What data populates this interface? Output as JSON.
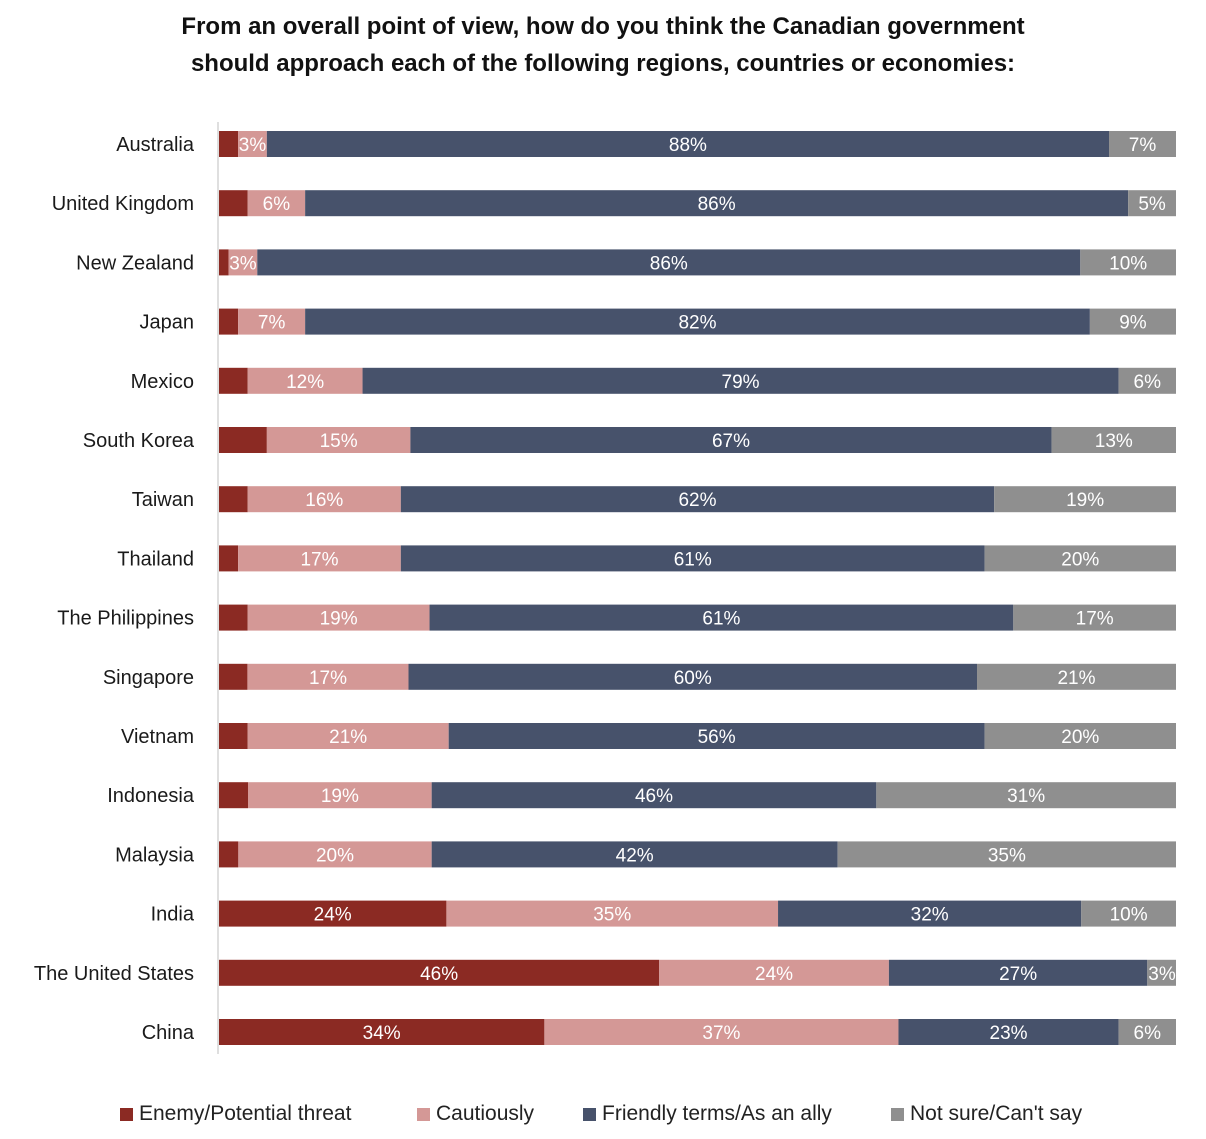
{
  "chart_data": {
    "type": "bar",
    "orientation": "horizontal",
    "stacked": true,
    "title": [
      "From an overall point of view, how do you think the Canadian government",
      "should approach each of the following regions, countries or economies:"
    ],
    "categories": [
      "Australia",
      "United Kingdom",
      "New Zealand",
      "Japan",
      "Mexico",
      "South Korea",
      "Taiwan",
      "Thailand",
      "The Philippines",
      "Singapore",
      "Vietnam",
      "Indonesia",
      "Malaysia",
      "India",
      "The United States",
      "China"
    ],
    "series": [
      {
        "name": "Enemy/Potential threat",
        "color": "#8b2a23",
        "values": [
          2,
          3,
          1,
          2,
          3,
          5,
          3,
          2,
          3,
          3,
          3,
          3,
          2,
          24,
          46,
          34
        ],
        "labels": [
          "",
          "",
          "",
          "",
          "",
          "",
          "",
          "",
          "",
          "",
          "",
          "",
          "",
          "24%",
          "46%",
          "34%"
        ]
      },
      {
        "name": "Cautiously",
        "color": "#d49896",
        "values": [
          3,
          6,
          3,
          7,
          12,
          15,
          16,
          17,
          19,
          17,
          21,
          19,
          20,
          35,
          24,
          37
        ],
        "labels": [
          "3%",
          "6%",
          "3%",
          "7%",
          "12%",
          "15%",
          "16%",
          "17%",
          "19%",
          "17%",
          "21%",
          "19%",
          "20%",
          "35%",
          "24%",
          "37%"
        ]
      },
      {
        "name": "Friendly terms/As an ally",
        "color": "#47526b",
        "values": [
          88,
          86,
          86,
          82,
          79,
          67,
          62,
          61,
          61,
          60,
          56,
          46,
          42,
          32,
          27,
          23
        ],
        "labels": [
          "88%",
          "86%",
          "86%",
          "82%",
          "79%",
          "67%",
          "62%",
          "61%",
          "61%",
          "60%",
          "56%",
          "46%",
          "42%",
          "32%",
          "27%",
          "23%"
        ]
      },
      {
        "name": "Not sure/Can't say",
        "color": "#8f8f8f",
        "values": [
          7,
          5,
          10,
          9,
          6,
          13,
          19,
          20,
          17,
          21,
          20,
          31,
          35,
          10,
          3,
          6
        ],
        "labels": [
          "7%",
          "5%",
          "10%",
          "9%",
          "6%",
          "13%",
          "19%",
          "20%",
          "17%",
          "21%",
          "20%",
          "31%",
          "35%",
          "10%",
          "3%",
          "6%"
        ]
      }
    ],
    "xlim": [
      0,
      100
    ],
    "legend_position": "bottom",
    "grid": false
  }
}
